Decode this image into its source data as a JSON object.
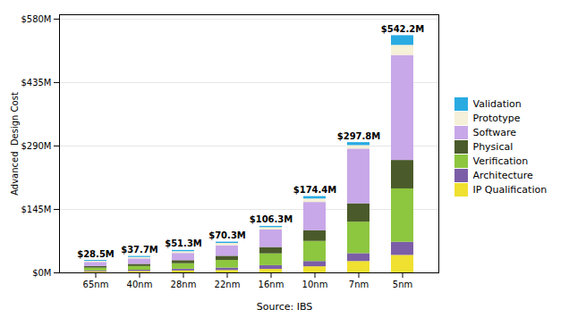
{
  "chart_data": {
    "type": "bar",
    "stacked": true,
    "categories": [
      "65nm",
      "40nm",
      "28nm",
      "22nm",
      "16nm",
      "10nm",
      "7nm",
      "5nm"
    ],
    "series": [
      {
        "name": "IP Qualification",
        "color": "#f0e030",
        "values": [
          2.5,
          3.2,
          4.5,
          5.5,
          8.0,
          14.0,
          26.0,
          40.0
        ]
      },
      {
        "name": "Architecture",
        "color": "#7b5ea7",
        "values": [
          2.0,
          2.8,
          4.0,
          5.5,
          8.5,
          12.0,
          18.0,
          30.0
        ]
      },
      {
        "name": "Verification",
        "color": "#8dc63f",
        "values": [
          6.5,
          8.7,
          12.5,
          17.5,
          27.0,
          46.0,
          72.0,
          122.0
        ]
      },
      {
        "name": "Physical",
        "color": "#4a5a2a",
        "values": [
          3.5,
          4.8,
          7.0,
          9.5,
          14.5,
          24.0,
          42.0,
          65.0
        ]
      },
      {
        "name": "Software",
        "color": "#c8a8e8",
        "values": [
          9.5,
          12.5,
          16.5,
          24.0,
          40.0,
          65.0,
          125.0,
          240.0
        ]
      },
      {
        "name": "Prototype",
        "color": "#f5f0d8",
        "values": [
          2.5,
          3.2,
          4.0,
          5.3,
          5.5,
          8.0,
          8.0,
          23.0
        ]
      },
      {
        "name": "Validation",
        "color": "#29abe2",
        "values": [
          2.0,
          2.5,
          2.8,
          3.0,
          2.8,
          5.4,
          6.8,
          22.2
        ]
      }
    ],
    "totals": [
      28.5,
      37.7,
      51.3,
      70.3,
      106.3,
      174.4,
      297.8,
      542.2
    ],
    "total_labels": [
      "$28.5M",
      "$37.7M",
      "$51.3M",
      "$70.3M",
      "$106.3M",
      "$174.4M",
      "$297.8M",
      "$542.2M"
    ],
    "ylabel": "Advanced  Design Cost",
    "ylim": [
      0,
      590
    ],
    "yticks": [
      {
        "value": 0,
        "label": "$0M"
      },
      {
        "value": 145,
        "label": "$145M"
      },
      {
        "value": 290,
        "label": "$290M"
      },
      {
        "value": 435,
        "label": "$435M"
      },
      {
        "value": 580,
        "label": "$580M"
      }
    ],
    "grid": true,
    "legend": "right",
    "caption": "Source: IBS"
  }
}
